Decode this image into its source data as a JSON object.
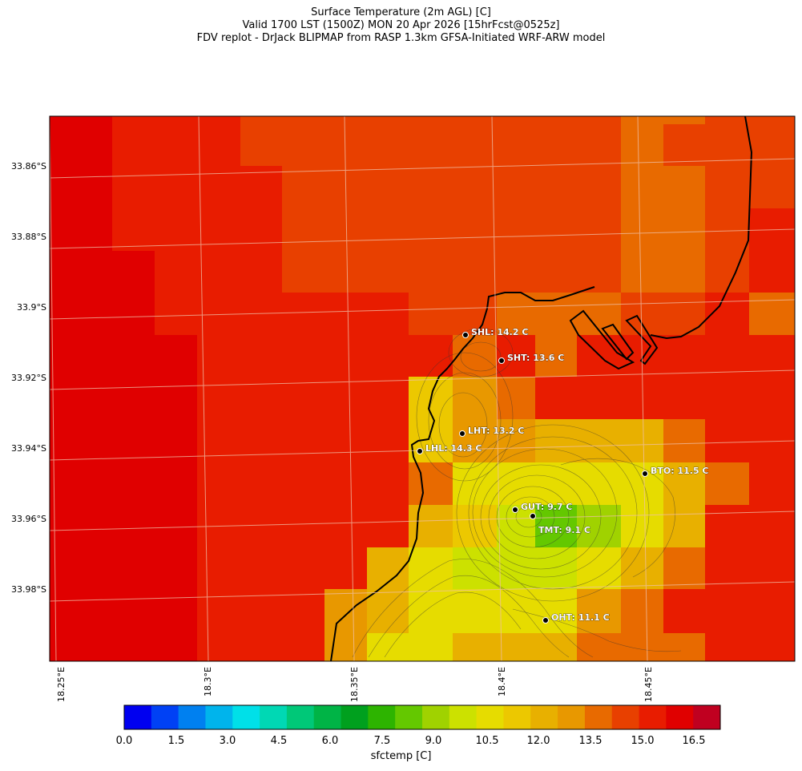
{
  "title": {
    "line1": "Surface Temperature (2m AGL) [C]",
    "line2": "Valid 1700 LST (1500Z) MON 20 Apr 2026 [15hrFcst@0525z]",
    "line3": "FDV replot - DrJack BLIPMAP from RASP 1.3km GFSA-Initiated WRF-ARW model"
  },
  "map": {
    "lat_labels": [
      "33.86°S",
      "33.88°S",
      "33.9°S",
      "33.92°S",
      "33.94°S",
      "33.96°S",
      "33.98°S"
    ],
    "lon_labels": [
      "18.25°E",
      "18.3°E",
      "18.35°E",
      "18.4°E",
      "18.45°E"
    ],
    "stations": [
      {
        "id": "SHL",
        "label": "SHL: 14.2 C"
      },
      {
        "id": "SHT",
        "label": "SHT: 13.6 C"
      },
      {
        "id": "LHT",
        "label": "LHT: 13.2 C"
      },
      {
        "id": "LHL",
        "label": "LHL: 14.3 C"
      },
      {
        "id": "BTO",
        "label": "BTO: 11.5 C"
      },
      {
        "id": "GUT",
        "label": "GUT: 9.7 C"
      },
      {
        "id": "TMT",
        "label": "TMT: 9.1 C"
      },
      {
        "id": "OHT",
        "label": "OHT: 11.1 C"
      }
    ]
  },
  "colorbar": {
    "label": "sfctemp [C]",
    "tick_labels": [
      "0.0",
      "1.5",
      "3.0",
      "4.5",
      "6.0",
      "7.5",
      "9.0",
      "10.5",
      "12.0",
      "13.5",
      "15.0",
      "16.5"
    ],
    "colors": [
      "#0000f0",
      "#0041f5",
      "#0080f0",
      "#00b4ec",
      "#00e0e8",
      "#00d8b4",
      "#00c878",
      "#00b446",
      "#00a01e",
      "#2db400",
      "#64c800",
      "#a0d200",
      "#cce100",
      "#e6dc00",
      "#ecc800",
      "#e8b000",
      "#e89800",
      "#e86a00",
      "#e84000",
      "#e81c00",
      "#e00000",
      "#c00020"
    ]
  }
}
